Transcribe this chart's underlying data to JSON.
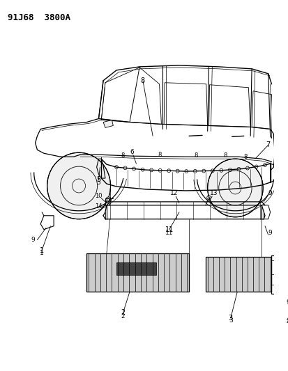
{
  "title": "91J68  3800A",
  "background_color": "#ffffff",
  "line_color": "#000000",
  "fig_width": 4.14,
  "fig_height": 5.33,
  "dpi": 100
}
